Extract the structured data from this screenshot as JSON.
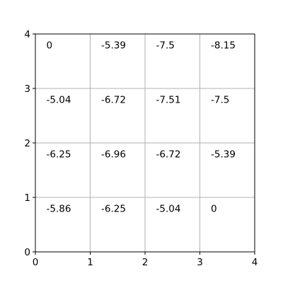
{
  "chart_data": {
    "type": "heatmap",
    "title": "",
    "xlabel": "",
    "ylabel": "",
    "xlim": [
      0,
      4
    ],
    "ylim": [
      0,
      4
    ],
    "xticks": [
      "0",
      "1",
      "2",
      "3",
      "4"
    ],
    "yticks": [
      "0",
      "1",
      "2",
      "3",
      "4"
    ],
    "grid": true,
    "grid_color": "#b0b0b0",
    "cells": [
      {
        "x": 0,
        "y": 3,
        "label": "0"
      },
      {
        "x": 1,
        "y": 3,
        "label": "-5.39"
      },
      {
        "x": 2,
        "y": 3,
        "label": "-7.5"
      },
      {
        "x": 3,
        "y": 3,
        "label": "-8.15"
      },
      {
        "x": 0,
        "y": 2,
        "label": "-5.04"
      },
      {
        "x": 1,
        "y": 2,
        "label": "-6.72"
      },
      {
        "x": 2,
        "y": 2,
        "label": "-7.51"
      },
      {
        "x": 3,
        "y": 2,
        "label": "-7.5"
      },
      {
        "x": 0,
        "y": 1,
        "label": "-6.25"
      },
      {
        "x": 1,
        "y": 1,
        "label": "-6.96"
      },
      {
        "x": 2,
        "y": 1,
        "label": "-6.72"
      },
      {
        "x": 3,
        "y": 1,
        "label": "-5.39"
      },
      {
        "x": 0,
        "y": 0,
        "label": "-5.86"
      },
      {
        "x": 1,
        "y": 0,
        "label": "-6.25"
      },
      {
        "x": 2,
        "y": 0,
        "label": "-5.04"
      },
      {
        "x": 3,
        "y": 0,
        "label": "0"
      }
    ]
  }
}
